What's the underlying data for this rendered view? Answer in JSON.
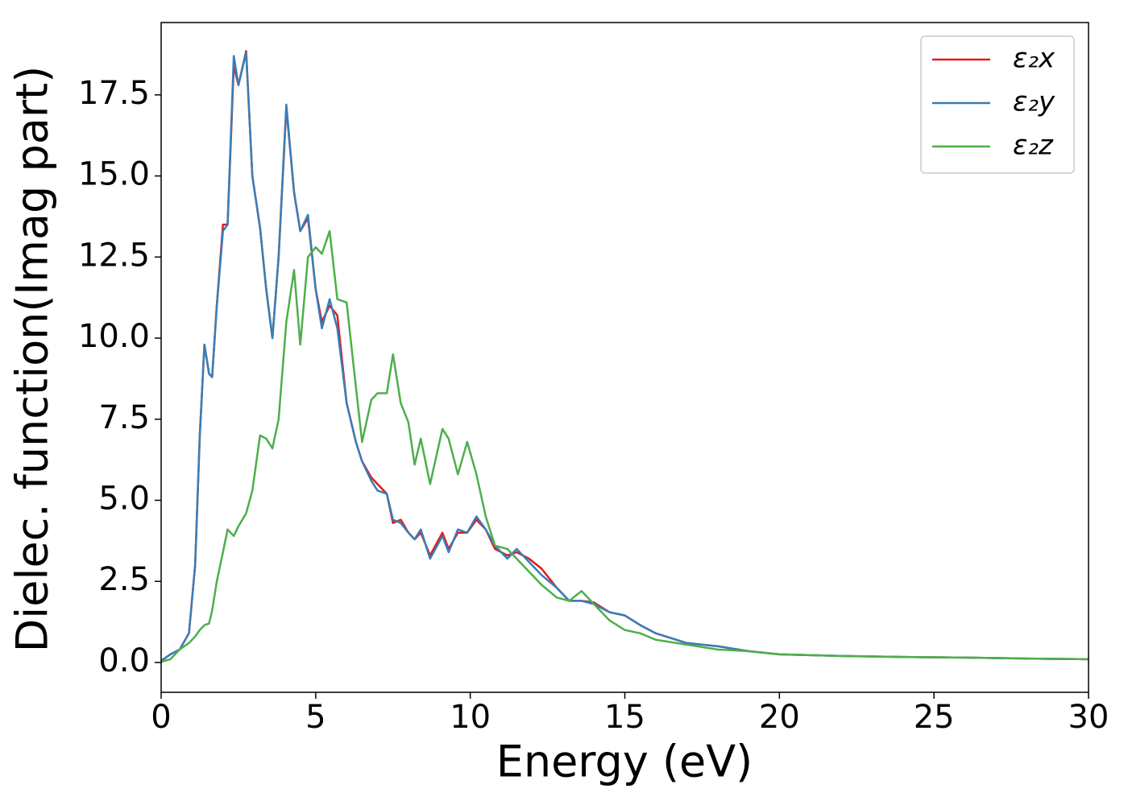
{
  "chart_data": {
    "type": "line",
    "x_label": "Energy (eV)",
    "y_label": "Dielec. function(Imag part)",
    "x": [
      0,
      0.3,
      0.6,
      0.9,
      1.1,
      1.25,
      1.4,
      1.55,
      1.65,
      1.8,
      2.0,
      2.15,
      2.35,
      2.5,
      2.75,
      2.95,
      3.2,
      3.4,
      3.6,
      3.8,
      4.05,
      4.3,
      4.5,
      4.75,
      5.0,
      5.2,
      5.45,
      5.7,
      6.0,
      6.3,
      6.5,
      6.8,
      7.0,
      7.3,
      7.5,
      7.75,
      8.0,
      8.2,
      8.4,
      8.7,
      9.1,
      9.3,
      9.6,
      9.9,
      10.2,
      10.5,
      10.8,
      11.2,
      11.5,
      11.9,
      12.3,
      12.8,
      13.2,
      13.6,
      14.0,
      14.5,
      15,
      15.5,
      16,
      17,
      18,
      19,
      20,
      22,
      24,
      26,
      28,
      30
    ],
    "series": [
      {
        "name": "ε₂x",
        "color": "#e41a1c",
        "values": [
          0.05,
          0.25,
          0.4,
          0.9,
          3.0,
          7.0,
          9.8,
          8.9,
          8.8,
          11.0,
          13.5,
          13.5,
          18.4,
          17.8,
          18.85,
          15.0,
          13.4,
          11.5,
          10.0,
          12.5,
          17.1,
          14.5,
          13.3,
          13.7,
          11.5,
          10.5,
          11.0,
          10.7,
          8.0,
          6.8,
          6.2,
          5.7,
          5.5,
          5.2,
          4.3,
          4.4,
          4.0,
          3.8,
          4.0,
          3.3,
          4.0,
          3.5,
          4.0,
          4.0,
          4.4,
          4.1,
          3.5,
          3.3,
          3.4,
          3.2,
          2.9,
          2.3,
          1.9,
          1.9,
          1.85,
          1.55,
          1.45,
          1.15,
          0.9,
          0.6,
          0.5,
          0.35,
          0.25,
          0.2,
          0.17,
          0.15,
          0.12,
          0.1
        ]
      },
      {
        "name": "ε₂y",
        "color": "#377eb8",
        "values": [
          0.05,
          0.25,
          0.4,
          0.9,
          3.0,
          7.0,
          9.8,
          8.9,
          8.8,
          11.0,
          13.3,
          13.5,
          18.7,
          17.8,
          18.8,
          15.0,
          13.4,
          11.5,
          10.0,
          12.5,
          17.2,
          14.5,
          13.3,
          13.8,
          11.5,
          10.3,
          11.2,
          10.3,
          8.0,
          6.8,
          6.2,
          5.6,
          5.3,
          5.2,
          4.4,
          4.3,
          4.0,
          3.8,
          4.1,
          3.2,
          3.9,
          3.4,
          4.1,
          4.0,
          4.5,
          4.1,
          3.6,
          3.2,
          3.5,
          3.1,
          2.7,
          2.3,
          1.9,
          1.9,
          1.8,
          1.55,
          1.45,
          1.15,
          0.9,
          0.6,
          0.5,
          0.35,
          0.25,
          0.2,
          0.17,
          0.15,
          0.12,
          0.1
        ]
      },
      {
        "name": "ε₂z",
        "color": "#4daf4a",
        "values": [
          0.02,
          0.1,
          0.4,
          0.6,
          0.8,
          1.0,
          1.15,
          1.2,
          1.6,
          2.5,
          3.4,
          4.1,
          3.9,
          4.2,
          4.6,
          5.3,
          7.0,
          6.9,
          6.6,
          7.5,
          10.5,
          12.1,
          9.8,
          12.5,
          12.8,
          12.6,
          13.3,
          11.2,
          11.1,
          8.5,
          6.8,
          8.1,
          8.3,
          8.3,
          9.5,
          8.0,
          7.4,
          6.1,
          6.9,
          5.5,
          7.2,
          6.9,
          5.8,
          6.8,
          5.8,
          4.5,
          3.6,
          3.5,
          3.2,
          2.8,
          2.4,
          2.0,
          1.9,
          2.2,
          1.8,
          1.3,
          1.0,
          0.9,
          0.7,
          0.55,
          0.4,
          0.35,
          0.25,
          0.2,
          0.17,
          0.15,
          0.12,
          0.1
        ]
      }
    ],
    "xlim": [
      0,
      30
    ],
    "xticks": [
      0,
      5,
      10,
      15,
      20,
      25,
      30
    ],
    "ylim": [
      -0.92,
      19.73
    ],
    "yticks": [
      {
        "value": 0,
        "label": "0.0"
      },
      2.5,
      {
        "value": 5,
        "label": "5.0"
      },
      7.5,
      {
        "value": 10,
        "label": "10.0"
      },
      12.5,
      {
        "value": 15,
        "label": "15.0"
      },
      17.5
    ],
    "legend": "upper right"
  }
}
